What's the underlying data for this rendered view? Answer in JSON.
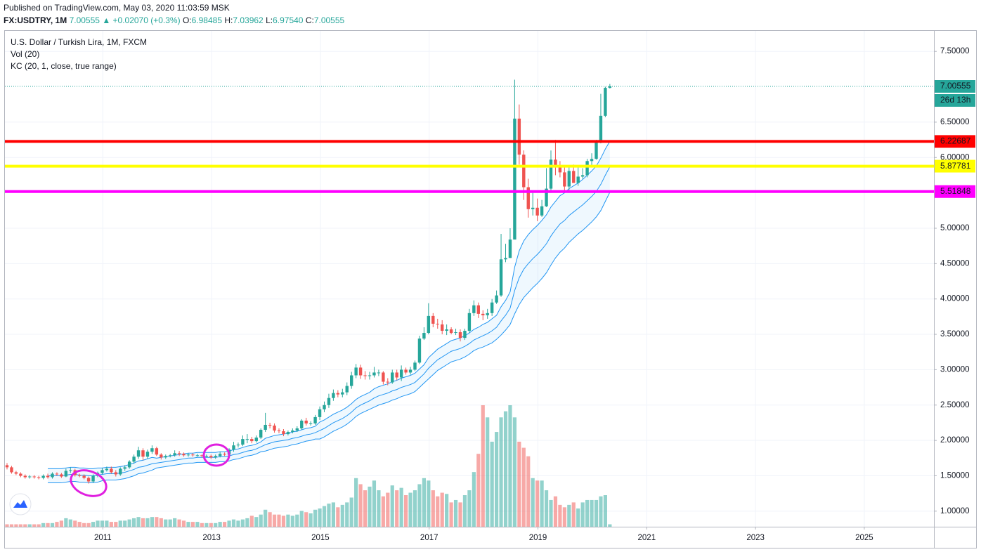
{
  "header": {
    "published": "Published on TradingView.com, May 03, 2020 11:03:59 MSK",
    "symbol": "FX:USDTRY, 1M",
    "last": "7.00555",
    "change": "▲ +0.02070 (+0.3%)",
    "ohlc": [
      {
        "label": "O:",
        "value": "6.98485"
      },
      {
        "label": "H:",
        "value": "7.03962"
      },
      {
        "label": "L:",
        "value": "6.97540"
      },
      {
        "label": "C:",
        "value": "7.00555"
      }
    ]
  },
  "chart_data": {
    "type": "candlestick",
    "title": "U.S. Dollar / Turkish Lira, 1M, FXCM",
    "indicators": [
      "Vol (20)",
      "KC (20, 1, close, true range)"
    ],
    "legend": "top-left",
    "up_color": "#26a69a",
    "down_color": "#ef5350",
    "kc_color": "#2196f3",
    "open": [
      1.65,
      1.62,
      1.55,
      1.53,
      1.5,
      1.48,
      1.49,
      1.48,
      1.47,
      1.5,
      1.48,
      1.53,
      1.52,
      1.49,
      1.57,
      1.58,
      1.51,
      1.5,
      1.47,
      1.42,
      1.5,
      1.54,
      1.58,
      1.6,
      1.55,
      1.52,
      1.6,
      1.62,
      1.7,
      1.77,
      1.86,
      1.77,
      1.84,
      1.89,
      1.8,
      1.76,
      1.78,
      1.79,
      1.82,
      1.81,
      1.79,
      1.8,
      1.79,
      1.79,
      1.78,
      1.78,
      1.76,
      1.78,
      1.81,
      1.8,
      1.87,
      1.93,
      1.94,
      2.02,
      2.02,
      1.99,
      2.04,
      2.15,
      2.22,
      2.21,
      2.14,
      2.13,
      2.09,
      2.12,
      2.14,
      2.17,
      2.28,
      2.24,
      2.24,
      2.33,
      2.44,
      2.5,
      2.6,
      2.67,
      2.65,
      2.68,
      2.77,
      2.92,
      3.03,
      2.92,
      2.91,
      2.92,
      2.96,
      2.96,
      2.83,
      2.82,
      2.96,
      2.89,
      3.0,
      2.96,
      3.0,
      3.1,
      3.44,
      3.52,
      3.76,
      3.65,
      3.64,
      3.55,
      3.57,
      3.52,
      3.53,
      3.45,
      3.55,
      3.8,
      3.91,
      3.79,
      3.77,
      3.8,
      3.95,
      4.05,
      4.56,
      4.58,
      4.84,
      6.55,
      6.04,
      5.58,
      5.27,
      5.29,
      5.18,
      5.31,
      5.56,
      5.97,
      5.86,
      5.79,
      5.59,
      5.81,
      5.64,
      5.73,
      5.75,
      5.95,
      5.98,
      6.24,
      6.59,
      6.98485
    ],
    "high": [
      1.68,
      1.64,
      1.57,
      1.55,
      1.52,
      1.51,
      1.51,
      1.5,
      1.52,
      1.53,
      1.55,
      1.55,
      1.54,
      1.6,
      1.62,
      1.6,
      1.53,
      1.52,
      1.49,
      1.52,
      1.56,
      1.61,
      1.63,
      1.63,
      1.58,
      1.62,
      1.65,
      1.72,
      1.8,
      1.91,
      1.89,
      1.87,
      1.93,
      1.91,
      1.82,
      1.8,
      1.81,
      1.86,
      1.85,
      1.83,
      1.82,
      1.82,
      1.81,
      1.8,
      1.8,
      1.8,
      1.8,
      1.84,
      1.83,
      1.89,
      1.98,
      1.97,
      2.07,
      2.09,
      2.05,
      2.07,
      2.17,
      2.39,
      2.25,
      2.24,
      2.17,
      2.16,
      2.14,
      2.17,
      2.2,
      2.3,
      2.32,
      2.27,
      2.36,
      2.48,
      2.55,
      2.66,
      2.72,
      2.71,
      2.73,
      2.82,
      2.97,
      3.08,
      3.07,
      2.98,
      2.97,
      3.04,
      3.0,
      2.98,
      2.88,
      3.0,
      3.0,
      3.06,
      3.03,
      3.04,
      3.13,
      3.48,
      3.6,
      3.94,
      3.8,
      3.72,
      3.7,
      3.64,
      3.6,
      3.58,
      3.57,
      3.58,
      3.86,
      3.98,
      3.95,
      3.84,
      3.86,
      4.0,
      4.12,
      4.92,
      4.78,
      5.0,
      7.1,
      6.75,
      6.1,
      5.7,
      5.5,
      5.42,
      5.4,
      5.85,
      6.1,
      6.25,
      5.95,
      5.86,
      5.86,
      5.9,
      5.88,
      5.85,
      5.98,
      6.06,
      6.25,
      6.9,
      7.0,
      7.03962
    ],
    "low": [
      1.59,
      1.53,
      1.51,
      1.48,
      1.46,
      1.46,
      1.46,
      1.45,
      1.45,
      1.46,
      1.46,
      1.5,
      1.47,
      1.48,
      1.54,
      1.49,
      1.48,
      1.45,
      1.39,
      1.4,
      1.48,
      1.52,
      1.56,
      1.53,
      1.49,
      1.5,
      1.57,
      1.6,
      1.67,
      1.74,
      1.72,
      1.74,
      1.81,
      1.78,
      1.73,
      1.74,
      1.76,
      1.77,
      1.78,
      1.77,
      1.77,
      1.77,
      1.77,
      1.76,
      1.76,
      1.74,
      1.74,
      1.76,
      1.78,
      1.78,
      1.84,
      1.9,
      1.92,
      1.96,
      1.96,
      1.97,
      2.02,
      2.12,
      2.17,
      2.11,
      2.1,
      2.06,
      2.07,
      2.1,
      2.12,
      2.15,
      2.21,
      2.21,
      2.22,
      2.29,
      2.4,
      2.46,
      2.56,
      2.61,
      2.61,
      2.64,
      2.73,
      2.88,
      2.87,
      2.86,
      2.86,
      2.89,
      2.91,
      2.79,
      2.78,
      2.8,
      2.85,
      2.84,
      2.93,
      2.93,
      2.98,
      3.08,
      3.42,
      3.5,
      3.6,
      3.58,
      3.5,
      3.49,
      3.5,
      3.49,
      3.4,
      3.42,
      3.52,
      3.76,
      3.73,
      3.7,
      3.72,
      3.76,
      3.93,
      4.03,
      4.52,
      4.58,
      4.9,
      5.9,
      5.4,
      5.15,
      5.18,
      5.1,
      5.16,
      5.3,
      5.5,
      5.75,
      5.72,
      5.52,
      5.5,
      5.65,
      5.6,
      5.7,
      5.72,
      5.86,
      5.97,
      6.2,
      6.57,
      6.9754
    ],
    "close": [
      1.62,
      1.55,
      1.53,
      1.5,
      1.48,
      1.49,
      1.48,
      1.47,
      1.5,
      1.48,
      1.53,
      1.52,
      1.49,
      1.57,
      1.58,
      1.51,
      1.5,
      1.47,
      1.42,
      1.5,
      1.54,
      1.58,
      1.6,
      1.55,
      1.52,
      1.6,
      1.62,
      1.7,
      1.77,
      1.86,
      1.77,
      1.84,
      1.89,
      1.8,
      1.76,
      1.78,
      1.79,
      1.82,
      1.81,
      1.79,
      1.8,
      1.79,
      1.79,
      1.78,
      1.78,
      1.76,
      1.78,
      1.81,
      1.8,
      1.87,
      1.93,
      1.94,
      2.02,
      2.02,
      1.99,
      2.04,
      2.15,
      2.22,
      2.21,
      2.14,
      2.13,
      2.09,
      2.12,
      2.14,
      2.17,
      2.28,
      2.24,
      2.24,
      2.33,
      2.44,
      2.5,
      2.6,
      2.67,
      2.65,
      2.68,
      2.77,
      2.92,
      3.03,
      2.92,
      2.91,
      2.92,
      2.96,
      2.96,
      2.83,
      2.82,
      2.96,
      2.89,
      3.0,
      2.96,
      3.0,
      3.1,
      3.44,
      3.52,
      3.76,
      3.65,
      3.64,
      3.55,
      3.57,
      3.52,
      3.53,
      3.45,
      3.55,
      3.8,
      3.91,
      3.79,
      3.77,
      3.8,
      3.95,
      4.05,
      4.56,
      4.58,
      4.84,
      6.55,
      6.04,
      5.58,
      5.27,
      5.29,
      5.18,
      5.31,
      5.56,
      5.97,
      5.86,
      5.79,
      5.59,
      5.81,
      5.64,
      5.73,
      5.75,
      5.95,
      5.98,
      6.24,
      6.59,
      6.98485,
      7.00555
    ],
    "volume": [
      2,
      2,
      2,
      2,
      2,
      2,
      2,
      2,
      3,
      3,
      3,
      4,
      5,
      7,
      6,
      5,
      4,
      3,
      3,
      4,
      5,
      5,
      5,
      4,
      4,
      5,
      5,
      6,
      7,
      8,
      7,
      7,
      8,
      8,
      7,
      6,
      6,
      7,
      6,
      5,
      4,
      4,
      4,
      3,
      3,
      3,
      3,
      4,
      4,
      5,
      6,
      5,
      6,
      7,
      9,
      8,
      10,
      14,
      12,
      10,
      10,
      9,
      10,
      9,
      10,
      13,
      12,
      11,
      14,
      15,
      17,
      19,
      20,
      16,
      18,
      20,
      24,
      40,
      35,
      30,
      33,
      38,
      30,
      25,
      28,
      34,
      30,
      32,
      26,
      28,
      30,
      35,
      40,
      38,
      30,
      25,
      28,
      27,
      20,
      22,
      20,
      26,
      30,
      45,
      60,
      100,
      90,
      70,
      78,
      90,
      95,
      100,
      90,
      70,
      65,
      58,
      40,
      38,
      38,
      30,
      22,
      25,
      18,
      16,
      18,
      20,
      15,
      20,
      22,
      22,
      22,
      25,
      26,
      2
    ],
    "kc_upper": [
      null,
      null,
      null,
      null,
      null,
      null,
      null,
      null,
      null,
      1.6,
      1.6,
      1.6,
      1.6,
      1.61,
      1.62,
      1.62,
      1.61,
      1.61,
      1.6,
      1.6,
      1.61,
      1.61,
      1.62,
      1.62,
      1.62,
      1.63,
      1.64,
      1.66,
      1.68,
      1.71,
      1.72,
      1.74,
      1.76,
      1.75,
      1.76,
      1.77,
      1.78,
      1.79,
      1.8,
      1.81,
      1.82,
      1.82,
      1.83,
      1.83,
      1.83,
      1.83,
      1.83,
      1.84,
      1.84,
      1.85,
      1.87,
      1.88,
      1.9,
      1.92,
      1.93,
      1.95,
      1.98,
      2.03,
      2.05,
      2.07,
      2.08,
      2.09,
      2.1,
      2.12,
      2.13,
      2.15,
      2.17,
      2.18,
      2.2,
      2.26,
      2.29,
      2.33,
      2.37,
      2.4,
      2.43,
      2.47,
      2.52,
      2.58,
      2.62,
      2.65,
      2.68,
      2.73,
      2.76,
      2.78,
      2.8,
      2.83,
      2.85,
      2.88,
      2.9,
      2.92,
      2.95,
      3.01,
      3.07,
      3.17,
      3.23,
      3.29,
      3.33,
      3.37,
      3.41,
      3.43,
      3.45,
      3.48,
      3.52,
      3.57,
      3.6,
      3.64,
      3.67,
      3.72,
      3.77,
      3.89,
      3.98,
      4.1,
      4.45,
      4.68,
      4.82,
      4.91,
      4.98,
      5.04,
      5.11,
      5.19,
      5.3,
      5.38,
      5.46,
      5.5,
      5.56,
      5.6,
      5.64,
      5.69,
      5.75,
      5.81,
      5.88,
      5.99,
      6.12,
      6.23
    ],
    "kc_middle": [
      null,
      null,
      null,
      null,
      null,
      null,
      null,
      null,
      null,
      1.5,
      1.5,
      1.5,
      1.5,
      1.51,
      1.52,
      1.52,
      1.51,
      1.51,
      1.5,
      1.5,
      1.51,
      1.52,
      1.53,
      1.53,
      1.53,
      1.54,
      1.55,
      1.57,
      1.59,
      1.62,
      1.63,
      1.65,
      1.67,
      1.68,
      1.69,
      1.7,
      1.71,
      1.72,
      1.73,
      1.74,
      1.75,
      1.75,
      1.76,
      1.76,
      1.76,
      1.76,
      1.76,
      1.77,
      1.77,
      1.78,
      1.8,
      1.81,
      1.83,
      1.85,
      1.86,
      1.88,
      1.91,
      1.94,
      1.96,
      1.98,
      1.99,
      2.0,
      2.01,
      2.03,
      2.04,
      2.06,
      2.08,
      2.09,
      2.11,
      2.14,
      2.17,
      2.21,
      2.25,
      2.28,
      2.31,
      2.35,
      2.4,
      2.46,
      2.5,
      2.53,
      2.56,
      2.6,
      2.63,
      2.65,
      2.67,
      2.7,
      2.72,
      2.75,
      2.77,
      2.79,
      2.82,
      2.88,
      2.94,
      3.02,
      3.08,
      3.14,
      3.18,
      3.22,
      3.26,
      3.28,
      3.3,
      3.33,
      3.37,
      3.42,
      3.45,
      3.48,
      3.51,
      3.55,
      3.6,
      3.69,
      3.77,
      3.87,
      4.12,
      4.3,
      4.42,
      4.5,
      4.57,
      4.63,
      4.7,
      4.78,
      4.89,
      4.98,
      5.06,
      5.11,
      5.18,
      5.23,
      5.28,
      5.33,
      5.39,
      5.45,
      5.52,
      5.62,
      5.75,
      5.87
    ],
    "kc_lower": [
      null,
      null,
      null,
      null,
      null,
      null,
      null,
      null,
      null,
      1.4,
      1.4,
      1.4,
      1.4,
      1.41,
      1.42,
      1.42,
      1.41,
      1.41,
      1.4,
      1.4,
      1.41,
      1.43,
      1.44,
      1.44,
      1.44,
      1.45,
      1.46,
      1.48,
      1.5,
      1.53,
      1.54,
      1.56,
      1.58,
      1.61,
      1.62,
      1.63,
      1.64,
      1.65,
      1.66,
      1.67,
      1.68,
      1.68,
      1.69,
      1.69,
      1.69,
      1.69,
      1.69,
      1.7,
      1.7,
      1.71,
      1.73,
      1.74,
      1.76,
      1.78,
      1.79,
      1.81,
      1.84,
      1.85,
      1.87,
      1.89,
      1.9,
      1.91,
      1.92,
      1.94,
      1.95,
      1.97,
      1.99,
      2.0,
      2.02,
      2.02,
      2.05,
      2.09,
      2.13,
      2.16,
      2.19,
      2.23,
      2.28,
      2.34,
      2.38,
      2.41,
      2.44,
      2.47,
      2.5,
      2.52,
      2.54,
      2.57,
      2.59,
      2.62,
      2.64,
      2.66,
      2.69,
      2.75,
      2.81,
      2.87,
      2.93,
      2.99,
      3.03,
      3.07,
      3.11,
      3.13,
      3.15,
      3.18,
      3.22,
      3.27,
      3.3,
      3.32,
      3.35,
      3.38,
      3.43,
      3.49,
      3.56,
      3.64,
      3.79,
      3.92,
      4.02,
      4.09,
      4.16,
      4.22,
      4.29,
      4.37,
      4.48,
      4.58,
      4.66,
      4.72,
      4.8,
      4.86,
      4.92,
      4.97,
      5.03,
      5.09,
      5.16,
      5.25,
      5.38,
      5.51
    ],
    "levels": [
      {
        "value": 6.22687,
        "color": "#ff0000"
      },
      {
        "value": 5.87781,
        "color": "#ffff00"
      },
      {
        "value": 5.51848,
        "color": "#ff00ff"
      }
    ],
    "price_line": {
      "value": 7.00555,
      "color": "#26a69a",
      "countdown": "26d 13h"
    },
    "ylim": [
      0.78,
      7.79
    ],
    "yticks": [
      {
        "value": 7.5,
        "label": "7.50000"
      },
      {
        "value": 6.5,
        "label": "6.50000"
      },
      {
        "value": 6.0,
        "label": "6.00000"
      },
      {
        "value": 5.0,
        "label": "5.00000"
      },
      {
        "value": 4.5,
        "label": "4.50000"
      },
      {
        "value": 4.0,
        "label": "4.00000"
      },
      {
        "value": 3.5,
        "label": "3.50000"
      },
      {
        "value": 3.0,
        "label": "3.00000"
      },
      {
        "value": 2.5,
        "label": "2.50000"
      },
      {
        "value": 2.0,
        "label": "2.00000"
      },
      {
        "value": 1.5,
        "label": "1.50000"
      },
      {
        "value": 1.0,
        "label": "1.00000"
      }
    ],
    "xlim": [
      2009.2,
      2026.28
    ],
    "xticks": [
      2011,
      2013,
      2015,
      2017,
      2019,
      2021,
      2023,
      2025
    ],
    "grid": true
  }
}
